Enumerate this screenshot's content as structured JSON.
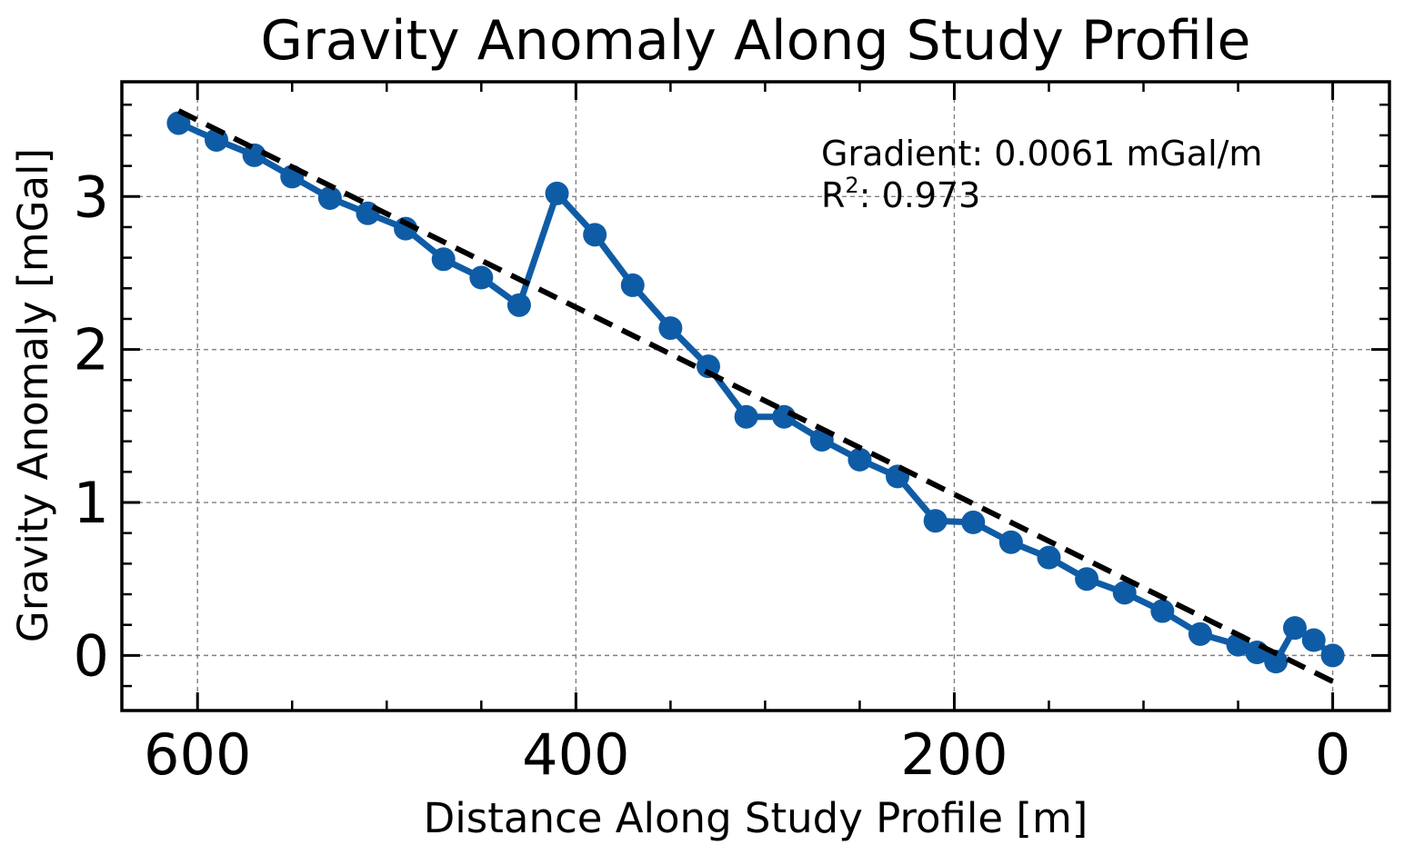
{
  "chart_data": {
    "type": "line",
    "title": "Gravity Anomaly Along Study Profile",
    "xlabel": "Distance Along Study Profile [m]",
    "ylabel": "Gravity Anomaly [mGal]",
    "xlim": [
      640,
      -30
    ],
    "ylim": [
      -0.36,
      3.75
    ],
    "x_inverted": true,
    "x_ticks": [
      600,
      400,
      200,
      0
    ],
    "y_ticks": [
      0,
      1,
      2,
      3
    ],
    "grid": true,
    "series": [
      {
        "color": "#0f5ca6",
        "x": [
          610,
          590,
          570,
          550,
          530,
          510,
          490,
          470,
          450,
          430,
          410,
          390,
          370,
          350,
          330,
          310,
          290,
          270,
          250,
          230,
          210,
          190,
          170,
          150,
          130,
          110,
          90,
          70,
          50,
          40,
          30,
          20,
          10,
          0
        ],
        "y": [
          3.48,
          3.37,
          3.27,
          3.13,
          2.99,
          2.89,
          2.79,
          2.59,
          2.47,
          2.29,
          3.02,
          2.75,
          2.42,
          2.14,
          1.89,
          1.56,
          1.56,
          1.41,
          1.28,
          1.17,
          0.88,
          0.87,
          0.74,
          0.64,
          0.5,
          0.41,
          0.29,
          0.14,
          0.07,
          0.02,
          -0.04,
          0.18,
          0.1,
          0.0
        ]
      }
    ],
    "fit_line": {
      "color": "#000000",
      "style": "dashed",
      "x": [
        610,
        0
      ],
      "y": [
        3.56,
        -0.17
      ]
    },
    "annotation": {
      "line1": "Gradient: 0.0061 mGal/m",
      "r2_prefix": "R",
      "r2_sup": "2",
      "r2_value": ": 0.973"
    }
  }
}
